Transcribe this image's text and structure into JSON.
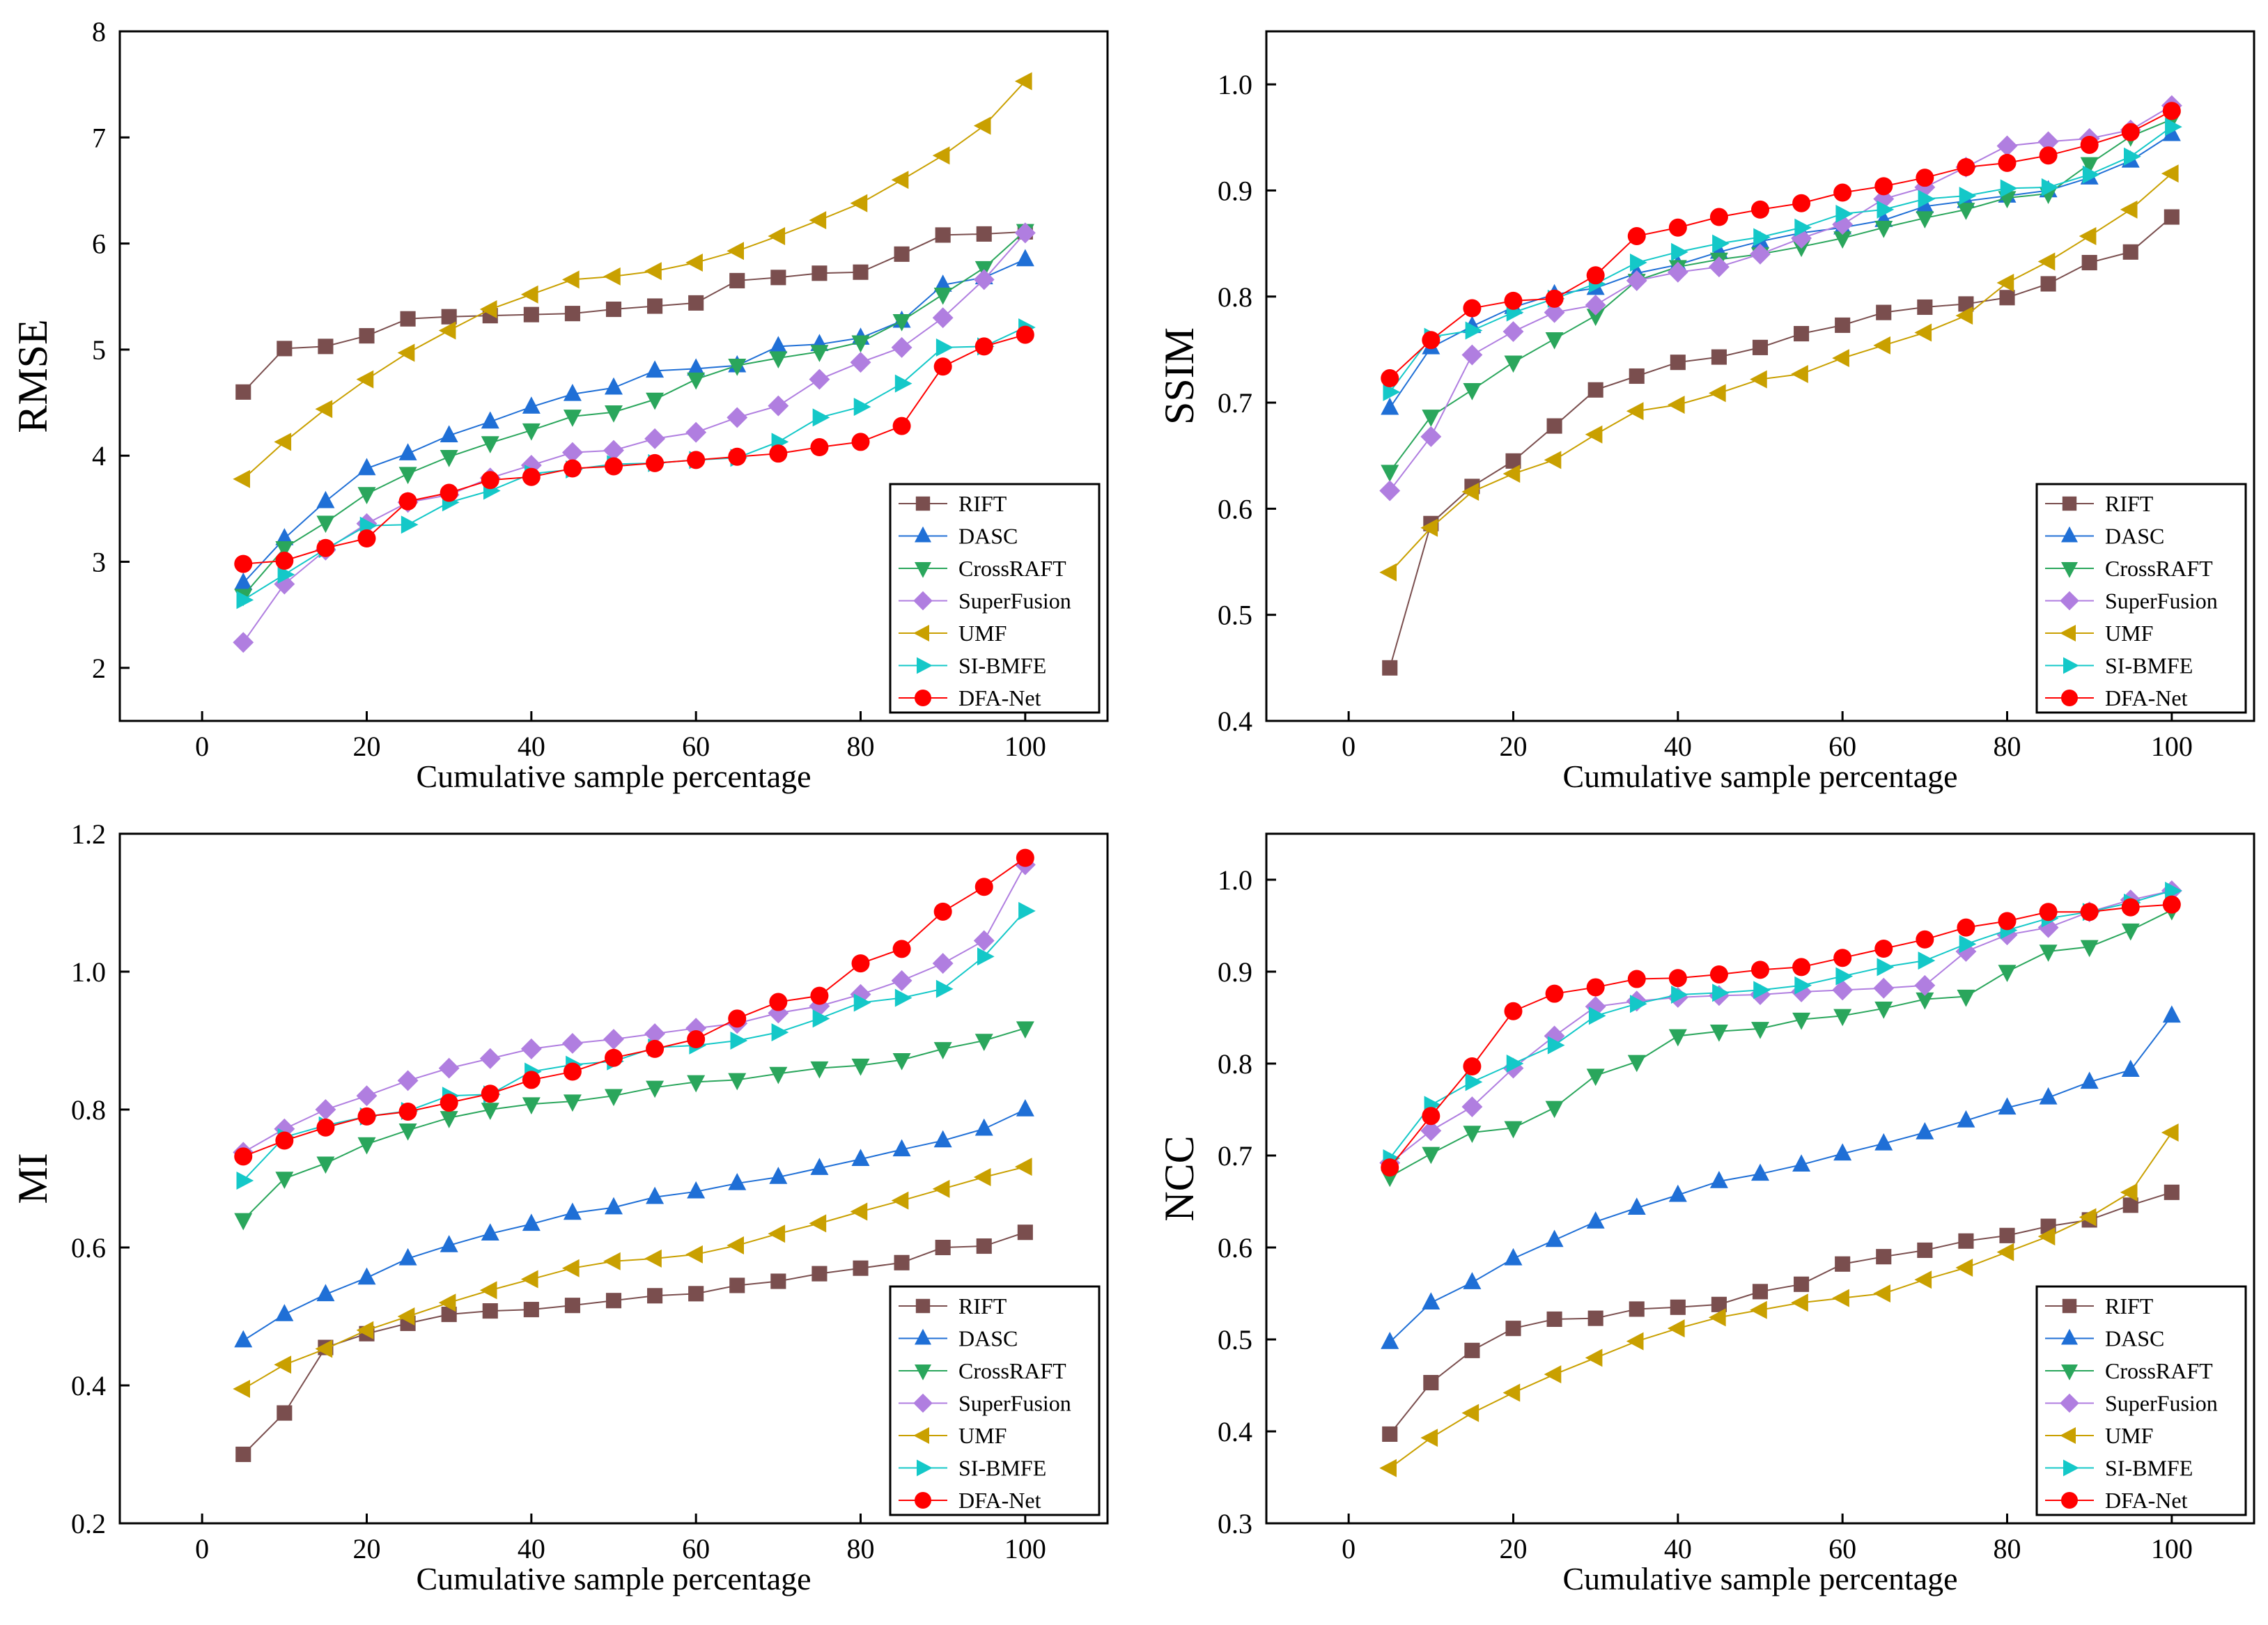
{
  "figure": {
    "series_styles": [
      {
        "name": "RIFT",
        "color": "#7a4e4e",
        "marker": "square"
      },
      {
        "name": "DASC",
        "color": "#1f6fd6",
        "marker": "triangle-up"
      },
      {
        "name": "CrossRAFT",
        "color": "#2aa65c",
        "marker": "triangle-down"
      },
      {
        "name": "SuperFusion",
        "color": "#b07ee0",
        "marker": "diamond"
      },
      {
        "name": "UMF",
        "color": "#c9a000",
        "marker": "triangle-left"
      },
      {
        "name": "SI-BMFE",
        "color": "#14c8c8",
        "marker": "triangle-right"
      },
      {
        "name": "DFA-Net",
        "color": "#ff0000",
        "marker": "circle"
      }
    ]
  },
  "chart_data": [
    {
      "type": "line",
      "ylabel": "RMSE",
      "xlabel": "Cumulative sample percentage",
      "xlim": [
        -10,
        110
      ],
      "ylim": [
        1.5,
        8
      ],
      "xticks": [
        0,
        20,
        40,
        60,
        80,
        100
      ],
      "yticks": [
        2,
        3,
        4,
        5,
        6,
        7,
        8
      ],
      "ytick_labels": [
        "2",
        "3",
        "4",
        "5",
        "6",
        "7",
        "8"
      ],
      "legend": "bottom-right",
      "x": [
        5,
        10,
        15,
        20,
        25,
        30,
        35,
        40,
        45,
        50,
        55,
        60,
        65,
        70,
        75,
        80,
        85,
        90,
        95,
        100
      ],
      "series": [
        {
          "name": "RIFT",
          "values": [
            4.6,
            5.01,
            5.03,
            5.13,
            5.29,
            5.31,
            5.32,
            5.33,
            5.34,
            5.38,
            5.41,
            5.44,
            5.65,
            5.68,
            5.72,
            5.73,
            5.9,
            6.08,
            6.09,
            6.11
          ]
        },
        {
          "name": "DASC",
          "values": [
            2.8,
            3.22,
            3.57,
            3.88,
            4.02,
            4.19,
            4.32,
            4.46,
            4.58,
            4.64,
            4.8,
            4.82,
            4.85,
            5.03,
            5.05,
            5.11,
            5.27,
            5.61,
            5.68,
            5.85
          ]
        },
        {
          "name": "CrossRAFT",
          "values": [
            2.68,
            3.13,
            3.37,
            3.64,
            3.83,
            3.99,
            4.12,
            4.24,
            4.37,
            4.41,
            4.53,
            4.72,
            4.85,
            4.92,
            4.98,
            5.07,
            5.27,
            5.52,
            5.77,
            6.12
          ]
        },
        {
          "name": "SuperFusion",
          "values": [
            2.24,
            2.79,
            3.11,
            3.36,
            3.56,
            3.63,
            3.79,
            3.91,
            4.03,
            4.05,
            4.16,
            4.22,
            4.36,
            4.47,
            4.72,
            4.88,
            5.02,
            5.3,
            5.66,
            6.1
          ]
        },
        {
          "name": "UMF",
          "values": [
            3.78,
            4.13,
            4.44,
            4.72,
            4.97,
            5.18,
            5.38,
            5.52,
            5.66,
            5.69,
            5.74,
            5.82,
            5.93,
            6.07,
            6.22,
            6.38,
            6.6,
            6.83,
            7.11,
            7.53
          ]
        },
        {
          "name": "SI-BMFE",
          "values": [
            2.64,
            2.88,
            3.12,
            3.34,
            3.35,
            3.56,
            3.67,
            3.83,
            3.87,
            3.92,
            3.93,
            3.96,
            3.98,
            4.13,
            4.36,
            4.46,
            4.68,
            5.02,
            5.03,
            5.21
          ]
        },
        {
          "name": "DFA-Net",
          "values": [
            2.98,
            3.01,
            3.13,
            3.22,
            3.57,
            3.65,
            3.77,
            3.8,
            3.88,
            3.9,
            3.93,
            3.96,
            3.99,
            4.02,
            4.08,
            4.13,
            4.28,
            4.84,
            5.03,
            5.14
          ]
        }
      ]
    },
    {
      "type": "line",
      "ylabel": "SSIM",
      "xlabel": "Cumulative sample percentage",
      "xlim": [
        -10,
        110
      ],
      "ylim": [
        0.4,
        1.05
      ],
      "xticks": [
        0,
        20,
        40,
        60,
        80,
        100
      ],
      "yticks": [
        0.4,
        0.5,
        0.6,
        0.7,
        0.8,
        0.9,
        1.0
      ],
      "ytick_labels": [
        "0.4",
        "0.5",
        "0.6",
        "0.7",
        "0.8",
        "0.9",
        "1.0"
      ],
      "legend": "bottom-right",
      "x": [
        5,
        10,
        15,
        20,
        25,
        30,
        35,
        40,
        45,
        50,
        55,
        60,
        65,
        70,
        75,
        80,
        85,
        90,
        95,
        100
      ],
      "series": [
        {
          "name": "RIFT",
          "values": [
            0.45,
            0.586,
            0.621,
            0.645,
            0.678,
            0.712,
            0.725,
            0.738,
            0.743,
            0.752,
            0.765,
            0.773,
            0.785,
            0.79,
            0.793,
            0.799,
            0.812,
            0.832,
            0.842,
            0.875
          ]
        },
        {
          "name": "DASC",
          "values": [
            0.695,
            0.752,
            0.772,
            0.79,
            0.802,
            0.808,
            0.822,
            0.83,
            0.842,
            0.852,
            0.86,
            0.865,
            0.872,
            0.885,
            0.89,
            0.895,
            0.9,
            0.912,
            0.928,
            0.953
          ]
        },
        {
          "name": "CrossRAFT",
          "values": [
            0.635,
            0.687,
            0.712,
            0.738,
            0.76,
            0.782,
            0.815,
            0.828,
            0.835,
            0.84,
            0.847,
            0.855,
            0.865,
            0.874,
            0.882,
            0.893,
            0.897,
            0.925,
            0.951,
            0.967
          ]
        },
        {
          "name": "SuperFusion",
          "values": [
            0.617,
            0.668,
            0.745,
            0.767,
            0.785,
            0.792,
            0.815,
            0.823,
            0.828,
            0.84,
            0.855,
            0.868,
            0.892,
            0.903,
            0.922,
            0.942,
            0.946,
            0.949,
            0.957,
            0.98
          ]
        },
        {
          "name": "UMF",
          "values": [
            0.54,
            0.582,
            0.616,
            0.633,
            0.646,
            0.67,
            0.692,
            0.698,
            0.709,
            0.722,
            0.727,
            0.742,
            0.754,
            0.766,
            0.782,
            0.813,
            0.833,
            0.857,
            0.882,
            0.916
          ]
        },
        {
          "name": "SI-BMFE",
          "values": [
            0.71,
            0.762,
            0.768,
            0.785,
            0.798,
            0.812,
            0.832,
            0.842,
            0.85,
            0.856,
            0.865,
            0.878,
            0.882,
            0.892,
            0.895,
            0.902,
            0.903,
            0.915,
            0.932,
            0.96
          ]
        },
        {
          "name": "DFA-Net",
          "values": [
            0.723,
            0.759,
            0.789,
            0.796,
            0.798,
            0.82,
            0.857,
            0.865,
            0.875,
            0.882,
            0.888,
            0.898,
            0.904,
            0.912,
            0.922,
            0.926,
            0.933,
            0.943,
            0.955,
            0.975
          ]
        }
      ]
    },
    {
      "type": "line",
      "ylabel": "MI",
      "xlabel": "Cumulative sample percentage",
      "xlim": [
        -10,
        110
      ],
      "ylim": [
        0.2,
        1.2
      ],
      "xticks": [
        0,
        20,
        40,
        60,
        80,
        100
      ],
      "yticks": [
        0.2,
        0.4,
        0.6,
        0.8,
        1.0,
        1.2
      ],
      "ytick_labels": [
        "0.2",
        "0.4",
        "0.6",
        "0.8",
        "1.0",
        "1.2"
      ],
      "legend": "bottom-right",
      "x": [
        5,
        10,
        15,
        20,
        25,
        30,
        35,
        40,
        45,
        50,
        55,
        60,
        65,
        70,
        75,
        80,
        85,
        90,
        95,
        100
      ],
      "series": [
        {
          "name": "RIFT",
          "values": [
            0.3,
            0.36,
            0.455,
            0.475,
            0.49,
            0.503,
            0.508,
            0.51,
            0.516,
            0.523,
            0.53,
            0.533,
            0.545,
            0.551,
            0.562,
            0.57,
            0.578,
            0.6,
            0.602,
            0.622
          ]
        },
        {
          "name": "DASC",
          "values": [
            0.465,
            0.503,
            0.532,
            0.556,
            0.584,
            0.603,
            0.62,
            0.634,
            0.65,
            0.658,
            0.673,
            0.681,
            0.693,
            0.702,
            0.715,
            0.728,
            0.742,
            0.755,
            0.772,
            0.8
          ]
        },
        {
          "name": "CrossRAFT",
          "values": [
            0.64,
            0.7,
            0.722,
            0.75,
            0.77,
            0.788,
            0.8,
            0.808,
            0.812,
            0.82,
            0.832,
            0.84,
            0.843,
            0.852,
            0.86,
            0.864,
            0.872,
            0.888,
            0.9,
            0.918
          ]
        },
        {
          "name": "SuperFusion",
          "values": [
            0.738,
            0.772,
            0.8,
            0.82,
            0.842,
            0.86,
            0.874,
            0.888,
            0.896,
            0.902,
            0.91,
            0.918,
            0.925,
            0.94,
            0.95,
            0.967,
            0.987,
            1.012,
            1.045,
            1.155
          ]
        },
        {
          "name": "UMF",
          "values": [
            0.395,
            0.43,
            0.453,
            0.48,
            0.5,
            0.52,
            0.538,
            0.554,
            0.57,
            0.58,
            0.584,
            0.59,
            0.603,
            0.62,
            0.635,
            0.652,
            0.668,
            0.685,
            0.702,
            0.717
          ]
        },
        {
          "name": "SI-BMFE",
          "values": [
            0.697,
            0.76,
            0.777,
            0.79,
            0.798,
            0.82,
            0.822,
            0.855,
            0.865,
            0.87,
            0.89,
            0.893,
            0.9,
            0.912,
            0.932,
            0.955,
            0.962,
            0.975,
            1.022,
            1.088
          ]
        },
        {
          "name": "DFA-Net",
          "values": [
            0.732,
            0.755,
            0.774,
            0.79,
            0.797,
            0.81,
            0.823,
            0.843,
            0.855,
            0.875,
            0.888,
            0.902,
            0.932,
            0.956,
            0.965,
            1.012,
            1.033,
            1.087,
            1.123,
            1.165
          ]
        }
      ]
    },
    {
      "type": "line",
      "ylabel": "NCC",
      "xlabel": "Cumulative sample percentage",
      "xlim": [
        -10,
        110
      ],
      "ylim": [
        0.3,
        1.05
      ],
      "xticks": [
        0,
        20,
        40,
        60,
        80,
        100
      ],
      "yticks": [
        0.3,
        0.4,
        0.5,
        0.6,
        0.7,
        0.8,
        0.9,
        1.0
      ],
      "ytick_labels": [
        "0.3",
        "0.4",
        "0.5",
        "0.6",
        "0.7",
        "0.8",
        "0.9",
        "1.0"
      ],
      "legend": "bottom-right",
      "x": [
        5,
        10,
        15,
        20,
        25,
        30,
        35,
        40,
        45,
        50,
        55,
        60,
        65,
        70,
        75,
        80,
        85,
        90,
        95,
        100
      ],
      "series": [
        {
          "name": "RIFT",
          "values": [
            0.397,
            0.453,
            0.488,
            0.512,
            0.522,
            0.523,
            0.533,
            0.535,
            0.538,
            0.552,
            0.56,
            0.582,
            0.59,
            0.597,
            0.607,
            0.613,
            0.623,
            0.63,
            0.646,
            0.66
          ]
        },
        {
          "name": "DASC",
          "values": [
            0.497,
            0.54,
            0.562,
            0.588,
            0.608,
            0.628,
            0.643,
            0.657,
            0.672,
            0.68,
            0.69,
            0.702,
            0.713,
            0.725,
            0.738,
            0.752,
            0.763,
            0.78,
            0.793,
            0.852
          ]
        },
        {
          "name": "CrossRAFT",
          "values": [
            0.677,
            0.702,
            0.725,
            0.73,
            0.752,
            0.787,
            0.802,
            0.83,
            0.835,
            0.838,
            0.848,
            0.852,
            0.86,
            0.87,
            0.873,
            0.9,
            0.922,
            0.927,
            0.945,
            0.967
          ]
        },
        {
          "name": "SuperFusion",
          "values": [
            0.692,
            0.727,
            0.753,
            0.795,
            0.83,
            0.862,
            0.868,
            0.872,
            0.874,
            0.875,
            0.878,
            0.88,
            0.882,
            0.885,
            0.922,
            0.94,
            0.948,
            0.965,
            0.978,
            0.988
          ]
        },
        {
          "name": "UMF",
          "values": [
            0.36,
            0.393,
            0.42,
            0.442,
            0.462,
            0.48,
            0.498,
            0.512,
            0.524,
            0.532,
            0.54,
            0.545,
            0.55,
            0.565,
            0.578,
            0.595,
            0.612,
            0.633,
            0.66,
            0.725
          ]
        },
        {
          "name": "SI-BMFE",
          "values": [
            0.697,
            0.755,
            0.78,
            0.8,
            0.82,
            0.852,
            0.865,
            0.875,
            0.877,
            0.88,
            0.885,
            0.895,
            0.905,
            0.912,
            0.93,
            0.945,
            0.958,
            0.965,
            0.975,
            0.988
          ]
        },
        {
          "name": "DFA-Net",
          "values": [
            0.687,
            0.743,
            0.797,
            0.857,
            0.876,
            0.883,
            0.892,
            0.893,
            0.897,
            0.902,
            0.905,
            0.915,
            0.925,
            0.935,
            0.948,
            0.955,
            0.965,
            0.965,
            0.97,
            0.973
          ]
        }
      ]
    }
  ]
}
